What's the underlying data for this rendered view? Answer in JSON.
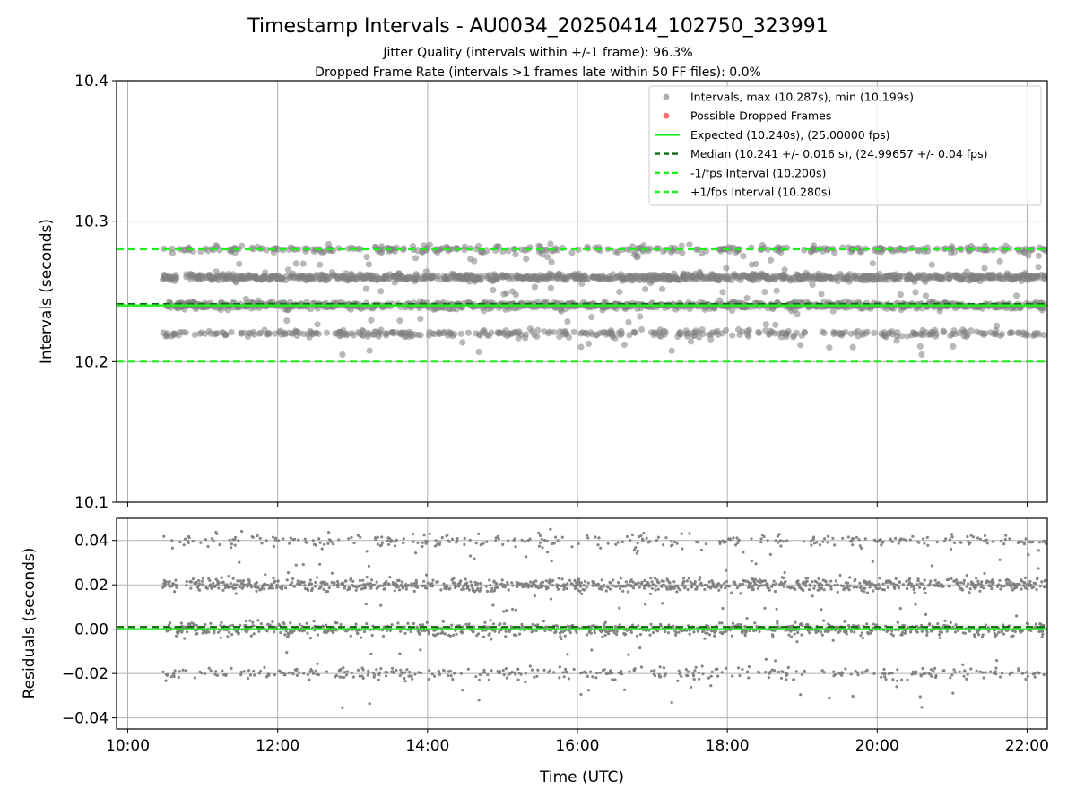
{
  "figure": {
    "title": "Timestamp Intervals - AU0034_20250414_102750_323991",
    "subtitle_line1": "Jitter Quality (intervals within +/-1 frame): 96.3%",
    "subtitle_line2": "Dropped Frame Rate (intervals >1 frames late within 50 FF files): 0.0%"
  },
  "colors": {
    "points": "#808080",
    "dropped": "#ff6666",
    "expected": "#22ee22",
    "median": "#116611",
    "fps_band": "#22ee22",
    "grid": "#b0b0b0"
  },
  "chart_data": [
    {
      "type": "scatter",
      "panel": "top",
      "ylabel": "Intervals (seconds)",
      "xlabel": "",
      "ylim": [
        10.1,
        10.4
      ],
      "xlim_hours": [
        9.85,
        22.27
      ],
      "x_ticks": [
        "10:00",
        "12:00",
        "14:00",
        "16:00",
        "18:00",
        "20:00",
        "22:00"
      ],
      "y_ticks": [
        "10.1",
        "10.2",
        "10.3",
        "10.4"
      ],
      "grid": true,
      "legend_placement": "top-right",
      "legend": [
        {
          "label": "Intervals, max (10.287s), min (10.199s)",
          "kind": "dot",
          "color": "#999999"
        },
        {
          "label": "Possible Dropped Frames",
          "kind": "dot",
          "color": "#ff6666"
        },
        {
          "label": "Expected (10.240s), (25.00000 fps)",
          "kind": "solid",
          "color": "#22ee22"
        },
        {
          "label": "Median (10.241 +/- 0.016 s), (24.99657 +/- 0.04 fps)",
          "kind": "dashed",
          "color": "#116611"
        },
        {
          "label": "-1/fps Interval (10.200s)",
          "kind": "dashed",
          "color": "#22ee22"
        },
        {
          "label": "+1/fps Interval (10.280s)",
          "kind": "dashed",
          "color": "#22ee22"
        }
      ],
      "reference_lines": {
        "expected": 10.24,
        "median": 10.241,
        "minus_fps": 10.2,
        "plus_fps": 10.28
      },
      "data_time_range_hours": [
        10.47,
        22.25
      ],
      "interval_levels": [
        {
          "value": 10.22,
          "share": 0.14
        },
        {
          "value": 10.24,
          "share": 0.33
        },
        {
          "value": 10.26,
          "share": 0.37
        },
        {
          "value": 10.28,
          "share": 0.11
        }
      ],
      "interval_max": 10.287,
      "interval_min": 10.199
    },
    {
      "type": "scatter",
      "panel": "bottom",
      "ylabel": "Residuals (seconds)",
      "xlabel": "Time (UTC)",
      "ylim": [
        -0.045,
        0.05
      ],
      "xlim_hours": [
        9.85,
        22.27
      ],
      "x_ticks": [
        "10:00",
        "12:00",
        "14:00",
        "16:00",
        "18:00",
        "20:00",
        "22:00"
      ],
      "y_ticks": [
        "−0.04",
        "−0.02",
        "0.00",
        "0.02",
        "0.04"
      ],
      "grid": true,
      "reference_lines": {
        "expected": 0.0,
        "median": 0.001
      },
      "residual_levels": [
        {
          "value": -0.02,
          "share": 0.14
        },
        {
          "value": 0.0,
          "share": 0.33
        },
        {
          "value": 0.02,
          "share": 0.37
        },
        {
          "value": 0.04,
          "share": 0.11
        }
      ]
    }
  ]
}
